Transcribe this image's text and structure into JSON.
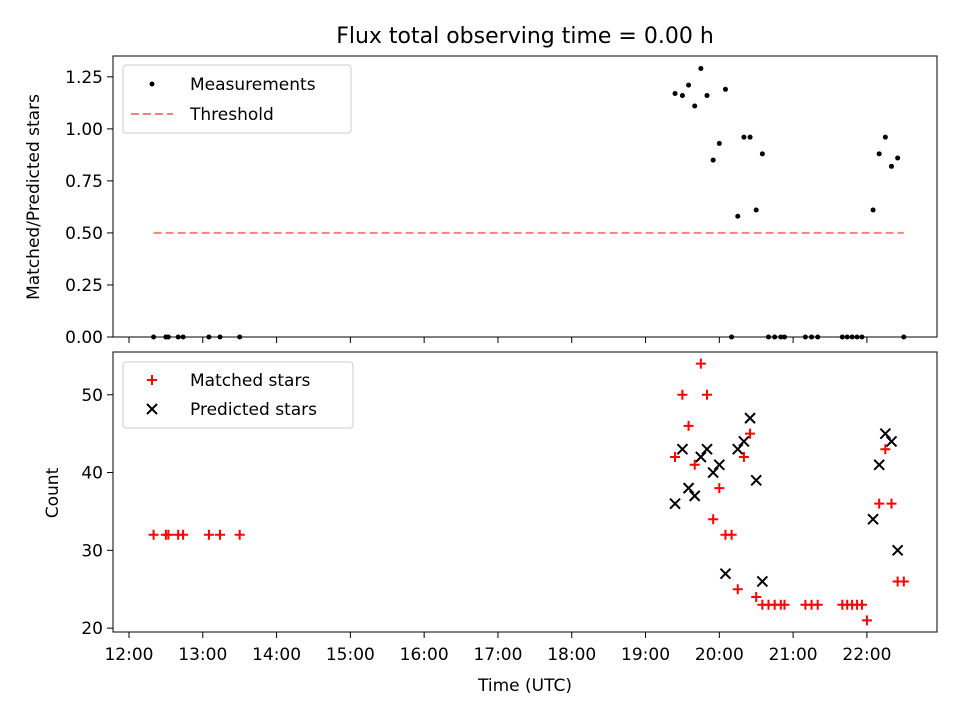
{
  "chart_data": [
    {
      "type": "scatter",
      "title": "Flux total observing time = 0.00 h",
      "ylabel": "Matched/Predicted stars",
      "xlabel": "",
      "ylim": [
        0,
        1.35
      ],
      "yticks": [
        "0.00",
        "0.25",
        "0.50",
        "0.75",
        "1.00",
        "1.25"
      ],
      "grid": false,
      "legend_position": "top-left",
      "legend": [
        "Measurements",
        "Threshold"
      ],
      "series": [
        {
          "name": "Measurements",
          "marker": "dot",
          "color": "#000000",
          "points": [
            [
              "12:20",
              0
            ],
            [
              "12:30",
              0
            ],
            [
              "12:32",
              0
            ],
            [
              "12:40",
              0
            ],
            [
              "12:44",
              0
            ],
            [
              "13:05",
              0
            ],
            [
              "13:14",
              0
            ],
            [
              "13:30",
              0
            ],
            [
              "19:24",
              1.17
            ],
            [
              "19:30",
              1.16
            ],
            [
              "19:35",
              1.21
            ],
            [
              "19:40",
              1.11
            ],
            [
              "19:45",
              1.29
            ],
            [
              "19:50",
              1.16
            ],
            [
              "19:55",
              0.85
            ],
            [
              "20:00",
              0.93
            ],
            [
              "20:05",
              1.19
            ],
            [
              "20:10",
              0
            ],
            [
              "20:15",
              0.58
            ],
            [
              "20:20",
              0.96
            ],
            [
              "20:25",
              0.96
            ],
            [
              "20:30",
              0.61
            ],
            [
              "20:35",
              0.88
            ],
            [
              "20:40",
              0
            ],
            [
              "20:45",
              0
            ],
            [
              "20:50",
              0
            ],
            [
              "20:53",
              0
            ],
            [
              "21:10",
              0
            ],
            [
              "21:15",
              0
            ],
            [
              "21:20",
              0
            ],
            [
              "21:40",
              0
            ],
            [
              "21:44",
              0
            ],
            [
              "21:48",
              0
            ],
            [
              "21:52",
              0
            ],
            [
              "21:56",
              0
            ],
            [
              "22:05",
              0.61
            ],
            [
              "22:10",
              0.88
            ],
            [
              "22:15",
              0.96
            ],
            [
              "22:20",
              0.82
            ],
            [
              "22:25",
              0.86
            ],
            [
              "22:30",
              0
            ]
          ]
        },
        {
          "name": "Threshold",
          "style": "dashed",
          "color": "#ff7f7f",
          "points": [
            [
              "12:20",
              0.5
            ],
            [
              "22:30",
              0.5
            ]
          ]
        }
      ]
    },
    {
      "type": "scatter",
      "title": "",
      "ylabel": "Count",
      "xlabel": "Time (UTC)",
      "ylim": [
        19.5,
        55.5
      ],
      "yticks": [
        "20",
        "30",
        "40",
        "50"
      ],
      "xticks": [
        "12:00",
        "13:00",
        "14:00",
        "15:00",
        "16:00",
        "17:00",
        "18:00",
        "19:00",
        "20:00",
        "21:00",
        "22:00"
      ],
      "grid": false,
      "legend_position": "top-left",
      "legend": [
        "Matched stars",
        "Predicted stars"
      ],
      "series": [
        {
          "name": "Matched stars",
          "marker": "plus",
          "color": "#ff0000",
          "points": [
            [
              "12:20",
              32
            ],
            [
              "12:30",
              32
            ],
            [
              "12:32",
              32
            ],
            [
              "12:40",
              32
            ],
            [
              "12:44",
              32
            ],
            [
              "13:05",
              32
            ],
            [
              "13:14",
              32
            ],
            [
              "13:30",
              32
            ],
            [
              "19:24",
              42
            ],
            [
              "19:30",
              50
            ],
            [
              "19:35",
              46
            ],
            [
              "19:40",
              41
            ],
            [
              "19:45",
              54
            ],
            [
              "19:50",
              50
            ],
            [
              "19:55",
              34
            ],
            [
              "20:00",
              38
            ],
            [
              "20:05",
              32
            ],
            [
              "20:10",
              32
            ],
            [
              "20:15",
              25
            ],
            [
              "20:20",
              42
            ],
            [
              "20:25",
              45
            ],
            [
              "20:30",
              24
            ],
            [
              "20:35",
              23
            ],
            [
              "20:40",
              23
            ],
            [
              "20:45",
              23
            ],
            [
              "20:50",
              23
            ],
            [
              "20:53",
              23
            ],
            [
              "21:10",
              23
            ],
            [
              "21:15",
              23
            ],
            [
              "21:20",
              23
            ],
            [
              "21:40",
              23
            ],
            [
              "21:44",
              23
            ],
            [
              "21:48",
              23
            ],
            [
              "21:52",
              23
            ],
            [
              "21:56",
              23
            ],
            [
              "22:00",
              21
            ],
            [
              "22:10",
              36
            ],
            [
              "22:15",
              43
            ],
            [
              "22:20",
              36
            ],
            [
              "22:25",
              26
            ],
            [
              "22:30",
              26
            ]
          ]
        },
        {
          "name": "Predicted stars",
          "marker": "x",
          "color": "#000000",
          "points": [
            [
              "19:24",
              36
            ],
            [
              "19:30",
              43
            ],
            [
              "19:35",
              38
            ],
            [
              "19:40",
              37
            ],
            [
              "19:45",
              42
            ],
            [
              "19:50",
              43
            ],
            [
              "19:55",
              40
            ],
            [
              "20:00",
              41
            ],
            [
              "20:05",
              27
            ],
            [
              "20:15",
              43
            ],
            [
              "20:20",
              44
            ],
            [
              "20:25",
              47
            ],
            [
              "20:30",
              39
            ],
            [
              "20:35",
              26
            ],
            [
              "22:05",
              34
            ],
            [
              "22:10",
              41
            ],
            [
              "22:15",
              45
            ],
            [
              "22:20",
              44
            ],
            [
              "22:25",
              30
            ]
          ]
        }
      ]
    }
  ]
}
